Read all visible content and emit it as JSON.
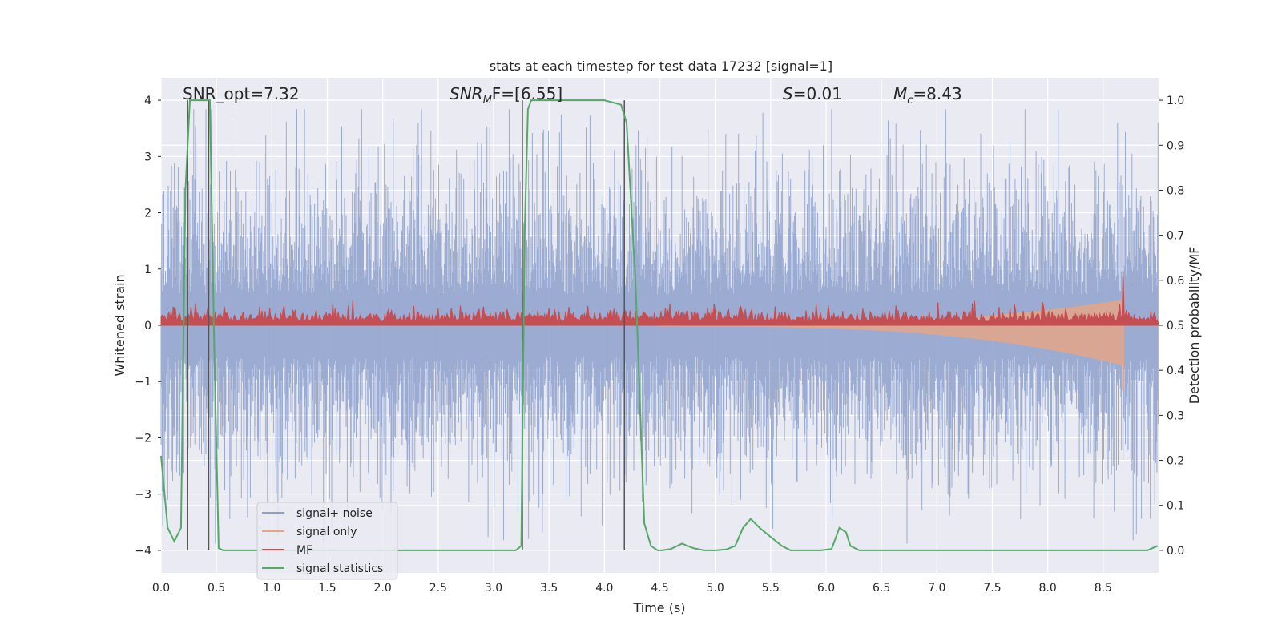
{
  "chart_data": {
    "type": "line",
    "title": "stats at each timestep for test data 17232 [signal=1]",
    "xlabel": "Time (s)",
    "ylabel": "Whitened strain",
    "y2label": "Detection probability/MF",
    "xlim": [
      0,
      9.0
    ],
    "ylim": [
      -4.4,
      4.4
    ],
    "y2lim": [
      -0.05,
      1.05
    ],
    "xticks": [
      "0.0",
      "0.5",
      "1.0",
      "1.5",
      "2.0",
      "2.5",
      "3.0",
      "3.5",
      "4.0",
      "4.5",
      "5.0",
      "5.5",
      "6.0",
      "6.5",
      "7.0",
      "7.5",
      "8.0",
      "8.5"
    ],
    "yticks": [
      "4",
      "3",
      "2",
      "1",
      "0",
      "−1",
      "−2",
      "−3",
      "−4"
    ],
    "y2ticks": [
      "1.0",
      "0.9",
      "0.8",
      "0.7",
      "0.6",
      "0.5",
      "0.4",
      "0.3",
      "0.2",
      "0.1",
      "0.0"
    ],
    "annotations": {
      "snr_opt": "SNR_opt=7.32",
      "snr_mf_base": "SNR",
      "snr_mf_sub": "M",
      "snr_mf_rest": "F=[6.55]",
      "s_sym": "S",
      "s_val": "=0.01",
      "mc_sym": "M",
      "mc_sub": "c",
      "mc_val": "=8.43"
    },
    "colors": {
      "noise": "#8da0cb",
      "signal": "#e8a584",
      "mf": "#c44e52",
      "stat": "#55a868",
      "grid": "#ffffff",
      "background": "#eaeaf2"
    },
    "series": [
      {
        "name": "signal+ noise",
        "kind": "noise-band",
        "amplitude": 4.0
      },
      {
        "name": "signal only",
        "kind": "chirp",
        "start": 4.5,
        "merger": 8.68,
        "peak": 1.3
      },
      {
        "name": "MF",
        "kind": "band",
        "baseline": 0.5,
        "spike_at": 8.68,
        "spike_value": 0.62
      },
      {
        "name": "signal statistics",
        "kind": "line",
        "x": [
          0.0,
          0.06,
          0.12,
          0.18,
          0.22,
          0.26,
          0.3,
          0.34,
          0.4,
          0.44,
          0.48,
          0.52,
          0.56,
          0.6,
          1.0,
          2.0,
          3.0,
          3.2,
          3.25,
          3.28,
          3.31,
          3.34,
          3.4,
          3.5,
          4.0,
          4.15,
          4.2,
          4.28,
          4.36,
          4.42,
          4.48,
          4.52,
          4.6,
          4.7,
          4.8,
          4.9,
          5.0,
          5.1,
          5.18,
          5.25,
          5.32,
          5.4,
          5.5,
          5.6,
          5.68,
          5.75,
          5.85,
          5.95,
          6.05,
          6.12,
          6.18,
          6.22,
          6.3,
          6.4,
          6.5,
          7.0,
          8.0,
          8.9,
          8.99
        ],
        "y": [
          0.21,
          0.05,
          0.02,
          0.05,
          0.8,
          1.0,
          1.0,
          1.0,
          1.0,
          1.0,
          0.45,
          0.005,
          0.0,
          0.0,
          0.0,
          0.0,
          0.0,
          0.0,
          0.01,
          0.7,
          0.98,
          1.0,
          1.0,
          1.0,
          1.0,
          0.99,
          0.95,
          0.6,
          0.06,
          0.01,
          0.0,
          0.0,
          0.003,
          0.015,
          0.005,
          0.0,
          0.0,
          0.002,
          0.01,
          0.05,
          0.07,
          0.05,
          0.03,
          0.01,
          0.0,
          0.0,
          0.0,
          0.0,
          0.003,
          0.05,
          0.04,
          0.01,
          0.0,
          0.0,
          0.0,
          0.0,
          0.0,
          0.0,
          0.01
        ]
      }
    ],
    "vlines": [
      0.24,
      0.43,
      3.26,
      4.18
    ],
    "legend": [
      {
        "label": "signal+ noise",
        "color": "#8da0cb"
      },
      {
        "label": "signal only",
        "color": "#e8a584"
      },
      {
        "label": "MF",
        "color": "#c44e52"
      },
      {
        "label": "signal statistics",
        "color": "#55a868"
      }
    ]
  }
}
